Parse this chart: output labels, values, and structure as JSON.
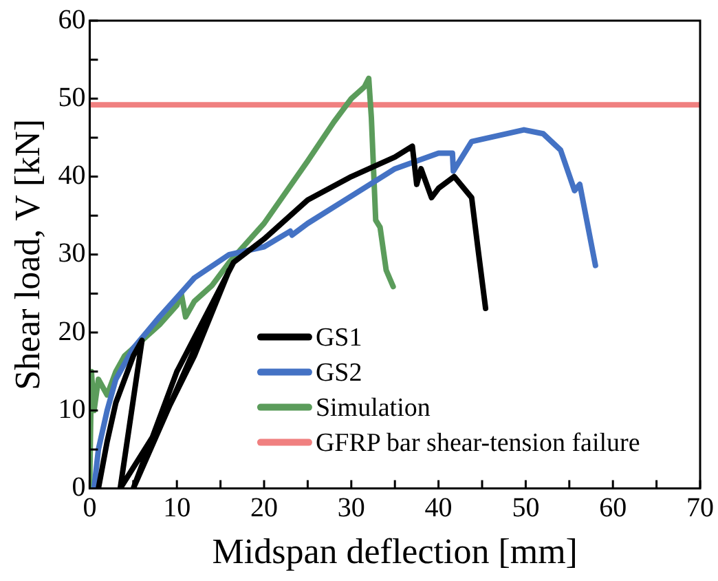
{
  "chart_data": {
    "type": "line",
    "xlabel": "Midspan deflection [mm]",
    "ylabel": "Shear load, V [kN]",
    "xlim": [
      0,
      70
    ],
    "ylim": [
      0,
      60
    ],
    "xticks": [
      0,
      {
        "value": 5,
        "label": null
      },
      10,
      {
        "value": 15,
        "label": null
      },
      20,
      {
        "value": 25,
        "label": null
      },
      30,
      {
        "value": 35,
        "label": null
      },
      40,
      {
        "value": 45,
        "label": null
      },
      50,
      {
        "value": 55,
        "label": null
      },
      60,
      {
        "value": 65,
        "label": null
      },
      70
    ],
    "yticks": [
      0,
      {
        "value": 5,
        "label": null
      },
      10,
      {
        "value": 15,
        "label": null
      },
      20,
      {
        "value": 25,
        "label": null
      },
      30,
      {
        "value": 35,
        "label": null
      },
      40,
      {
        "value": 45,
        "label": null
      },
      50,
      {
        "value": 55,
        "label": null
      },
      60
    ],
    "grid": false,
    "legend": "bottom right",
    "marker": "none",
    "line_style": "solid",
    "series": [
      {
        "name": "GS1",
        "color": "#000000",
        "x": [
          1,
          2,
          3,
          4,
          5,
          6,
          3.5,
          8,
          12,
          16,
          5,
          10,
          16.5,
          20,
          25,
          30,
          35,
          37,
          37.5,
          38,
          39.2,
          40,
          41.8,
          43.8,
          44.5,
          45.4
        ],
        "values": [
          0,
          6,
          11,
          14,
          17,
          19,
          0,
          8,
          17,
          28,
          0,
          15,
          29,
          32,
          37,
          40,
          42.5,
          43.9,
          39,
          41,
          37.3,
          38.5,
          40,
          37.3,
          31,
          23.1
        ]
      },
      {
        "name": "GS2",
        "color": "#4472c4",
        "x": [
          0.5,
          1,
          2,
          3,
          5,
          8,
          12,
          16,
          20,
          23,
          23.2,
          25,
          30,
          35,
          40,
          41.6,
          41.7,
          43.8,
          49.8,
          52,
          54,
          55.6,
          56.2,
          58
        ],
        "values": [
          0,
          5,
          10,
          14,
          18,
          22,
          27,
          30,
          31,
          33,
          32.5,
          34,
          37.5,
          41,
          43,
          43,
          40.7,
          44.5,
          46,
          45.5,
          43.4,
          38.2,
          39,
          28.6
        ]
      },
      {
        "name": "Simulation",
        "color": "#5b9c5b",
        "x": [
          0,
          0.2,
          0.5,
          1,
          2,
          3,
          4,
          6,
          8,
          10,
          10.5,
          11,
          12,
          14,
          16,
          20,
          25,
          28,
          30,
          31.5,
          32,
          32.3,
          32.8,
          33.3,
          34,
          34.8
        ],
        "values": [
          0,
          15,
          10,
          14,
          12,
          15,
          17,
          19,
          21,
          23.5,
          25,
          22,
          24,
          26,
          29,
          34,
          42,
          47,
          50,
          51.5,
          52.6,
          47.6,
          34.4,
          33.5,
          28,
          25.9
        ]
      },
      {
        "name": "GFRP bar shear-tension failure",
        "color": "#f08080",
        "x": [
          0,
          70
        ],
        "values": [
          49.2,
          49.2
        ]
      }
    ]
  }
}
